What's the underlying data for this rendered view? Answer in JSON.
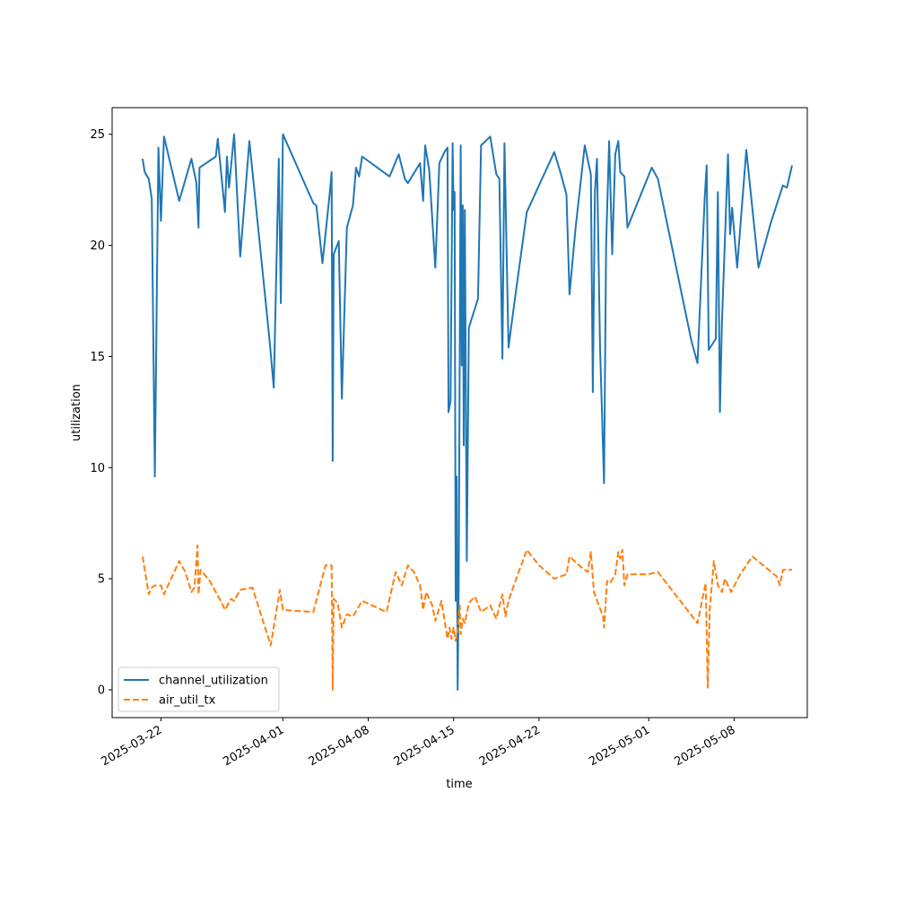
{
  "chart_data": {
    "type": "line",
    "title": "",
    "xlabel": "time",
    "ylabel": "utilization",
    "ylim": [
      -1.25,
      26.2
    ],
    "xlim": [
      "2025-03-18T00:00",
      "2025-05-14T00:00"
    ],
    "grid": false,
    "legend_position": "lower-left",
    "x_ticks": [
      "2025-03-22",
      "2025-04-01",
      "2025-04-08",
      "2025-04-15",
      "2025-04-22",
      "2025-05-01",
      "2025-05-08"
    ],
    "y_ticks": [
      0,
      5,
      10,
      15,
      20,
      25
    ],
    "series": [
      {
        "name": "channel_utilization",
        "color": "#1f77b4",
        "style": "solid",
        "points": [
          [
            "2025-03-20T12:00",
            23.9
          ],
          [
            "2025-03-20T16:00",
            23.3
          ],
          [
            "2025-03-21T00:00",
            23.0
          ],
          [
            "2025-03-21T06:00",
            22.1
          ],
          [
            "2025-03-21T12:00",
            9.6
          ],
          [
            "2025-03-21T19:00",
            24.4
          ],
          [
            "2025-03-22T00:00",
            21.1
          ],
          [
            "2025-03-22T06:00",
            24.9
          ],
          [
            "2025-03-23T12:00",
            22.0
          ],
          [
            "2025-03-24T12:00",
            23.9
          ],
          [
            "2025-03-24T22:00",
            22.8
          ],
          [
            "2025-03-25T02:00",
            20.8
          ],
          [
            "2025-03-25T04:00",
            23.5
          ],
          [
            "2025-03-26T12:00",
            24.0
          ],
          [
            "2025-03-26T16:00",
            24.8
          ],
          [
            "2025-03-27T06:00",
            21.5
          ],
          [
            "2025-03-27T10:00",
            24.0
          ],
          [
            "2025-03-27T14:00",
            22.6
          ],
          [
            "2025-03-28T00:00",
            25.0
          ],
          [
            "2025-03-28T12:00",
            19.5
          ],
          [
            "2025-03-29T06:00",
            24.7
          ],
          [
            "2025-03-30T22:00",
            15.7
          ],
          [
            "2025-03-31T06:00",
            13.6
          ],
          [
            "2025-03-31T16:00",
            23.9
          ],
          [
            "2025-03-31T20:00",
            17.4
          ],
          [
            "2025-04-01T00:00",
            25.0
          ],
          [
            "2025-04-03T12:00",
            21.9
          ],
          [
            "2025-04-03T18:00",
            21.8
          ],
          [
            "2025-04-04T06:00",
            19.2
          ],
          [
            "2025-04-04T20:00",
            22.3
          ],
          [
            "2025-04-05T00:00",
            23.3
          ],
          [
            "2025-04-05T02:00",
            10.3
          ],
          [
            "2025-04-05T04:00",
            19.6
          ],
          [
            "2025-04-05T14:00",
            20.2
          ],
          [
            "2025-04-05T20:00",
            13.1
          ],
          [
            "2025-04-06T06:00",
            20.8
          ],
          [
            "2025-04-06T18:00",
            21.8
          ],
          [
            "2025-04-07T00:00",
            23.5
          ],
          [
            "2025-04-07T06:00",
            23.1
          ],
          [
            "2025-04-07T12:00",
            24.0
          ],
          [
            "2025-04-09T18:00",
            23.1
          ],
          [
            "2025-04-10T12:00",
            24.1
          ],
          [
            "2025-04-11T00:00",
            23.0
          ],
          [
            "2025-04-11T06:00",
            22.8
          ],
          [
            "2025-04-12T06:00",
            23.7
          ],
          [
            "2025-04-12T12:00",
            22.0
          ],
          [
            "2025-04-12T16:00",
            24.5
          ],
          [
            "2025-04-13T00:00",
            23.4
          ],
          [
            "2025-04-13T12:00",
            19.0
          ],
          [
            "2025-04-13T20:00",
            23.7
          ],
          [
            "2025-04-14T06:00",
            24.2
          ],
          [
            "2025-04-14T12:00",
            24.4
          ],
          [
            "2025-04-14T14:00",
            12.5
          ],
          [
            "2025-04-14T18:00",
            13.0
          ],
          [
            "2025-04-14T22:00",
            24.6
          ],
          [
            "2025-04-15T00:00",
            21.6
          ],
          [
            "2025-04-15T02:00",
            22.4
          ],
          [
            "2025-04-15T04:00",
            4.0
          ],
          [
            "2025-04-15T06:00",
            9.6
          ],
          [
            "2025-04-15T08:00",
            0.0
          ],
          [
            "2025-04-15T10:00",
            5.0
          ],
          [
            "2025-04-15T14:00",
            24.5
          ],
          [
            "2025-04-15T16:00",
            14.6
          ],
          [
            "2025-04-15T18:00",
            21.8
          ],
          [
            "2025-04-15T20:00",
            11.0
          ],
          [
            "2025-04-15T22:00",
            21.6
          ],
          [
            "2025-04-16T02:00",
            5.8
          ],
          [
            "2025-04-16T06:00",
            16.3
          ],
          [
            "2025-04-17T00:00",
            17.6
          ],
          [
            "2025-04-17T06:00",
            24.5
          ],
          [
            "2025-04-18T00:00",
            24.9
          ],
          [
            "2025-04-18T12:00",
            23.2
          ],
          [
            "2025-04-18T18:00",
            23.0
          ],
          [
            "2025-04-19T00:00",
            14.9
          ],
          [
            "2025-04-19T04:00",
            24.6
          ],
          [
            "2025-04-19T12:00",
            15.4
          ],
          [
            "2025-04-20T00:00",
            17.5
          ],
          [
            "2025-04-21T00:00",
            21.5
          ],
          [
            "2025-04-23T06:00",
            24.2
          ],
          [
            "2025-04-23T18:00",
            23.3
          ],
          [
            "2025-04-24T06:00",
            22.3
          ],
          [
            "2025-04-24T12:00",
            17.8
          ],
          [
            "2025-04-25T00:00",
            20.8
          ],
          [
            "2025-04-25T18:00",
            24.5
          ],
          [
            "2025-04-26T06:00",
            23.2
          ],
          [
            "2025-04-26T10:00",
            13.4
          ],
          [
            "2025-04-26T14:00",
            22.4
          ],
          [
            "2025-04-26T18:00",
            23.9
          ],
          [
            "2025-04-27T00:00",
            15.5
          ],
          [
            "2025-04-27T08:00",
            9.3
          ],
          [
            "2025-04-27T12:00",
            20.0
          ],
          [
            "2025-04-27T18:00",
            24.7
          ],
          [
            "2025-04-28T00:00",
            19.6
          ],
          [
            "2025-04-28T06:00",
            24.1
          ],
          [
            "2025-04-28T12:00",
            24.7
          ],
          [
            "2025-04-28T16:00",
            23.3
          ],
          [
            "2025-04-29T00:00",
            23.1
          ],
          [
            "2025-04-29T06:00",
            20.8
          ],
          [
            "2025-05-01T06:00",
            23.5
          ],
          [
            "2025-05-01T18:00",
            23.0
          ],
          [
            "2025-05-04T12:00",
            15.7
          ],
          [
            "2025-05-05T00:00",
            14.7
          ],
          [
            "2025-05-05T14:00",
            22.1
          ],
          [
            "2025-05-05T18:00",
            23.6
          ],
          [
            "2025-05-05T22:00",
            15.3
          ],
          [
            "2025-05-06T12:00",
            15.8
          ],
          [
            "2025-05-06T16:00",
            22.4
          ],
          [
            "2025-05-06T20:00",
            12.5
          ],
          [
            "2025-05-07T00:00",
            16.5
          ],
          [
            "2025-05-07T12:00",
            24.1
          ],
          [
            "2025-05-07T16:00",
            20.5
          ],
          [
            "2025-05-07T20:00",
            21.7
          ],
          [
            "2025-05-08T06:00",
            19.0
          ],
          [
            "2025-05-09T00:00",
            24.3
          ],
          [
            "2025-05-10T00:00",
            19.0
          ],
          [
            "2025-05-11T00:00",
            21.0
          ],
          [
            "2025-05-12T00:00",
            22.7
          ],
          [
            "2025-05-12T08:00",
            22.6
          ],
          [
            "2025-05-12T18:00",
            23.6
          ]
        ]
      },
      {
        "name": "air_util_tx",
        "color": "#ff7f0e",
        "style": "dashed",
        "points": [
          [
            "2025-03-20T12:00",
            6.0
          ],
          [
            "2025-03-21T00:00",
            4.3
          ],
          [
            "2025-03-21T06:00",
            4.6
          ],
          [
            "2025-03-21T12:00",
            4.7
          ],
          [
            "2025-03-22T00:00",
            4.7
          ],
          [
            "2025-03-22T06:00",
            4.3
          ],
          [
            "2025-03-23T12:00",
            5.8
          ],
          [
            "2025-03-24T00:00",
            5.3
          ],
          [
            "2025-03-24T12:00",
            4.4
          ],
          [
            "2025-03-24T18:00",
            4.6
          ],
          [
            "2025-03-25T00:00",
            6.5
          ],
          [
            "2025-03-25T02:00",
            4.3
          ],
          [
            "2025-03-25T06:00",
            5.4
          ],
          [
            "2025-03-26T00:00",
            4.9
          ],
          [
            "2025-03-27T00:00",
            3.9
          ],
          [
            "2025-03-27T06:00",
            3.6
          ],
          [
            "2025-03-27T18:00",
            4.1
          ],
          [
            "2025-03-28T00:00",
            4.0
          ],
          [
            "2025-03-28T12:00",
            4.5
          ],
          [
            "2025-03-29T12:00",
            4.6
          ],
          [
            "2025-03-31T00:00",
            2.0
          ],
          [
            "2025-03-31T18:00",
            4.5
          ],
          [
            "2025-04-01T00:00",
            3.6
          ],
          [
            "2025-04-03T12:00",
            3.5
          ],
          [
            "2025-04-04T12:00",
            5.6
          ],
          [
            "2025-04-05T00:00",
            5.6
          ],
          [
            "2025-04-05T02:00",
            0.0
          ],
          [
            "2025-04-05T04:00",
            4.1
          ],
          [
            "2025-04-05T12:00",
            3.9
          ],
          [
            "2025-04-05T20:00",
            2.8
          ],
          [
            "2025-04-06T06:00",
            3.4
          ],
          [
            "2025-04-06T18:00",
            3.3
          ],
          [
            "2025-04-07T12:00",
            4.0
          ],
          [
            "2025-04-09T12:00",
            3.5
          ],
          [
            "2025-04-10T06:00",
            5.3
          ],
          [
            "2025-04-10T18:00",
            4.7
          ],
          [
            "2025-04-11T06:00",
            5.6
          ],
          [
            "2025-04-11T18:00",
            5.3
          ],
          [
            "2025-04-12T06:00",
            4.7
          ],
          [
            "2025-04-12T12:00",
            3.6
          ],
          [
            "2025-04-12T18:00",
            4.4
          ],
          [
            "2025-04-13T06:00",
            3.8
          ],
          [
            "2025-04-13T12:00",
            3.1
          ],
          [
            "2025-04-14T00:00",
            4.0
          ],
          [
            "2025-04-14T12:00",
            2.3
          ],
          [
            "2025-04-14T16:00",
            2.8
          ],
          [
            "2025-04-14T20:00",
            2.3
          ],
          [
            "2025-04-15T00:00",
            2.8
          ],
          [
            "2025-04-15T04:00",
            2.2
          ],
          [
            "2025-04-15T08:00",
            2.7
          ],
          [
            "2025-04-15T12:00",
            3.8
          ],
          [
            "2025-04-15T14:00",
            2.5
          ],
          [
            "2025-04-15T18:00",
            3.2
          ],
          [
            "2025-04-15T22:00",
            3.0
          ],
          [
            "2025-04-16T06:00",
            3.9
          ],
          [
            "2025-04-16T18:00",
            4.2
          ],
          [
            "2025-04-17T06:00",
            3.5
          ],
          [
            "2025-04-18T00:00",
            3.8
          ],
          [
            "2025-04-18T12:00",
            3.2
          ],
          [
            "2025-04-19T00:00",
            4.3
          ],
          [
            "2025-04-19T06:00",
            3.3
          ],
          [
            "2025-04-19T12:00",
            4.0
          ],
          [
            "2025-04-20T00:00",
            4.8
          ],
          [
            "2025-04-21T00:00",
            6.3
          ],
          [
            "2025-04-22T00:00",
            5.6
          ],
          [
            "2025-04-23T06:00",
            5.0
          ],
          [
            "2025-04-24T06:00",
            5.2
          ],
          [
            "2025-04-24T12:00",
            6.0
          ],
          [
            "2025-04-25T12:00",
            5.5
          ],
          [
            "2025-04-26T00:00",
            5.3
          ],
          [
            "2025-04-26T06:00",
            6.2
          ],
          [
            "2025-04-26T12:00",
            4.4
          ],
          [
            "2025-04-27T06:00",
            3.3
          ],
          [
            "2025-04-27T08:00",
            2.8
          ],
          [
            "2025-04-27T14:00",
            4.9
          ],
          [
            "2025-04-27T20:00",
            4.8
          ],
          [
            "2025-04-28T06:00",
            5.2
          ],
          [
            "2025-04-28T12:00",
            6.2
          ],
          [
            "2025-04-28T16:00",
            5.9
          ],
          [
            "2025-04-28T20:00",
            6.3
          ],
          [
            "2025-04-29T00:00",
            4.7
          ],
          [
            "2025-04-29T06:00",
            5.2
          ],
          [
            "2025-05-01T00:00",
            5.2
          ],
          [
            "2025-05-01T18:00",
            5.3
          ],
          [
            "2025-05-05T00:00",
            3.0
          ],
          [
            "2025-05-05T16:00",
            4.8
          ],
          [
            "2025-05-05T20:00",
            0.1
          ],
          [
            "2025-05-06T00:00",
            3.6
          ],
          [
            "2025-05-06T08:00",
            5.8
          ],
          [
            "2025-05-06T16:00",
            4.7
          ],
          [
            "2025-05-07T00:00",
            4.4
          ],
          [
            "2025-05-07T06:00",
            5.0
          ],
          [
            "2025-05-07T18:00",
            4.4
          ],
          [
            "2025-05-08T12:00",
            5.2
          ],
          [
            "2025-05-09T12:00",
            6.0
          ],
          [
            "2025-05-11T12:00",
            5.1
          ],
          [
            "2025-05-11T18:00",
            4.7
          ],
          [
            "2025-05-12T00:00",
            5.4
          ],
          [
            "2025-05-12T18:00",
            5.4
          ]
        ]
      }
    ]
  }
}
